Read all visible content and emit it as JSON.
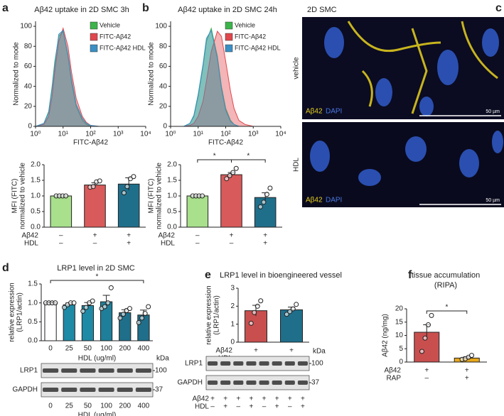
{
  "chart_data": [
    {
      "type": "histogram",
      "panel": "a",
      "title": "Aβ42 uptake in 2D SMC 3h",
      "ylabel": "Normalized to mode",
      "xlabel": "FITC-Aβ42",
      "xlog": true,
      "legend": "upper right",
      "x": [
        1,
        2,
        3,
        4,
        5,
        7,
        10,
        15,
        20,
        30,
        50,
        70,
        100,
        200
      ],
      "xlim": [
        1,
        10000
      ],
      "xticks": [
        {
          "value": 1,
          "label": "10⁰"
        },
        {
          "value": 10,
          "label": "10¹"
        },
        {
          "value": 100,
          "label": "10²"
        },
        {
          "value": 1000,
          "label": "10³"
        },
        {
          "value": 10000,
          "label": "10⁴"
        }
      ],
      "ylim": [
        0,
        105
      ],
      "yticks": [
        0,
        20,
        40,
        60,
        80,
        100
      ],
      "series": [
        {
          "name": "Vehicle",
          "color": "#3cb44b",
          "values": [
            0,
            3,
            15,
            40,
            65,
            90,
            95,
            70,
            45,
            20,
            6,
            2,
            0,
            0
          ]
        },
        {
          "name": "FITC-Aβ42",
          "color": "#e0474c",
          "values": [
            0,
            2,
            10,
            30,
            55,
            85,
            98,
            80,
            55,
            28,
            10,
            4,
            1,
            0
          ]
        },
        {
          "name": "FITC-Aβ42 HDL",
          "color": "#3a8fc4",
          "values": [
            0,
            3,
            14,
            38,
            62,
            92,
            96,
            72,
            48,
            22,
            8,
            3,
            1,
            0
          ]
        }
      ]
    },
    {
      "type": "bar",
      "ylabel": [
        "MFI (FITC)",
        "normalized to vehicle"
      ],
      "ylim": [
        0,
        2
      ],
      "yticks": [
        {
          "value": 0,
          "label": "0.0"
        },
        {
          "value": 0.5,
          "label": "0.5"
        },
        {
          "value": 1,
          "label": "1.0"
        },
        {
          "value": 1.5,
          "label": "1.5"
        },
        {
          "value": 2,
          "label": "2.0"
        }
      ],
      "values": [
        1,
        1.35,
        1.38
      ],
      "errors": [
        0,
        0.07,
        0.2
      ],
      "colors": [
        "#a8e08c",
        "#d95a5a",
        "#1f6f8b"
      ],
      "points": [
        [
          1,
          1,
          1,
          1
        ],
        [
          1.28,
          1.3,
          1.45,
          1.48
        ],
        [
          1.1,
          1.3,
          1.55,
          1.62
        ]
      ],
      "conditions": [
        {
          "name": "Aβ42",
          "values": [
            "–",
            "+",
            "+"
          ]
        },
        {
          "name": "HDL",
          "values": [
            "–",
            "–",
            "+"
          ]
        }
      ]
    },
    {
      "type": "histogram",
      "panel": "b",
      "title": "Aβ42 uptake in 2D SMC  24h",
      "ylabel": "Normalized to mode",
      "xlabel": "FITC-Aβ42",
      "xlog": true,
      "legend": "upper right",
      "x": [
        3,
        5,
        7,
        10,
        15,
        20,
        30,
        50,
        70,
        100,
        150,
        200,
        300,
        500,
        1000
      ],
      "xlim": [
        1,
        10000
      ],
      "xticks": [
        {
          "value": 1,
          "label": "10⁰"
        },
        {
          "value": 10,
          "label": "10¹"
        },
        {
          "value": 100,
          "label": "10²"
        },
        {
          "value": 1000,
          "label": "10³"
        },
        {
          "value": 10000,
          "label": "10⁴"
        }
      ],
      "ylim": [
        0,
        105
      ],
      "yticks": [
        0,
        20,
        40,
        60,
        80,
        100
      ],
      "series": [
        {
          "name": "Vehicle",
          "color": "#3cb44b",
          "values": [
            0,
            3,
            10,
            30,
            60,
            85,
            98,
            70,
            40,
            18,
            6,
            2,
            0,
            0,
            0
          ]
        },
        {
          "name": "FITC-Aβ42",
          "color": "#e0474c",
          "values": [
            0,
            1,
            3,
            10,
            25,
            45,
            75,
            95,
            90,
            65,
            35,
            18,
            6,
            2,
            0
          ]
        },
        {
          "name": "FITC-Aβ42 HDL",
          "color": "#3a8fc4",
          "values": [
            0,
            3,
            11,
            32,
            62,
            88,
            96,
            68,
            38,
            16,
            5,
            2,
            0,
            0,
            0
          ]
        }
      ]
    },
    {
      "type": "bar",
      "ylabel": [
        "MFI (FITC)",
        "normalized to vehicle"
      ],
      "ylim": [
        0,
        2
      ],
      "yticks": [
        {
          "value": 0,
          "label": "0.0"
        },
        {
          "value": 0.5,
          "label": "0.5"
        },
        {
          "value": 1,
          "label": "1.0"
        },
        {
          "value": 1.5,
          "label": "1.5"
        },
        {
          "value": 2,
          "label": "2.0"
        }
      ],
      "values": [
        1,
        1.68,
        0.95
      ],
      "errors": [
        0,
        0.07,
        0.15
      ],
      "colors": [
        "#a8e08c",
        "#d95a5a",
        "#1f6f8b"
      ],
      "points": [
        [
          1,
          1,
          1,
          1
        ],
        [
          1.55,
          1.65,
          1.75,
          1.88
        ],
        [
          0.65,
          0.8,
          1.05,
          1.25
        ]
      ],
      "conditions": [
        {
          "name": "Aβ42",
          "values": [
            "–",
            "+",
            "+"
          ]
        },
        {
          "name": "HDL",
          "values": [
            "–",
            "–",
            "+"
          ]
        }
      ],
      "significance": [
        "*",
        "*"
      ]
    },
    {
      "type": "bar",
      "panel": "d",
      "title": [
        "LRP1 level in 2D SMC"
      ],
      "ylabel": [
        "relative expression",
        "(LRP1/actin)"
      ],
      "xlabel": "HDL (ug/ml)",
      "ylim": [
        0,
        1.5
      ],
      "yticks": [
        {
          "value": 0,
          "label": "0.0"
        },
        {
          "value": 0.5,
          "label": "0.5"
        },
        {
          "value": 1,
          "label": "1.0"
        },
        {
          "value": 1.5,
          "label": "1.5"
        }
      ],
      "categories": [
        "0",
        "25",
        "50",
        "100",
        "200",
        "400"
      ],
      "values": [
        1,
        0.95,
        0.93,
        1.03,
        0.74,
        0.68
      ],
      "errors": [
        0.02,
        0.05,
        0.08,
        0.17,
        0.08,
        0.13
      ],
      "colors": [
        "#ffffff",
        "#1f8aa6",
        "#1f8aa6",
        "#1f7f9a",
        "#1f6f8b",
        "#1f6f8b"
      ],
      "points": [
        [
          1,
          1,
          1,
          1
        ],
        [
          0.88,
          0.95,
          1,
          1
        ],
        [
          0.78,
          0.88,
          1,
          1.05
        ],
        [
          0.85,
          0.9,
          1,
          1.4
        ],
        [
          0.6,
          0.7,
          0.8,
          0.85
        ],
        [
          0.48,
          0.6,
          0.72,
          0.9
        ]
      ],
      "significance": [
        "*"
      ],
      "blot": {
        "unit": "kDa",
        "rows": [
          "LRP1",
          "GAPDH"
        ],
        "kda": [
          100,
          37
        ],
        "lanes": [
          "0",
          "25",
          "50",
          "100",
          "200",
          "400"
        ],
        "xlabel": "HDL (µg/ml)"
      }
    },
    {
      "type": "bar",
      "panel": "e",
      "title": [
        "LRP1 level in bioengineered vessel"
      ],
      "ylabel": [
        "relative expression",
        "(LRP1/actin)"
      ],
      "ylim": [
        0,
        3
      ],
      "yticks": [
        0,
        1,
        2,
        3
      ],
      "values": [
        1.75,
        1.8
      ],
      "errors": [
        0.3,
        0.15
      ],
      "colors": [
        "#c94f4f",
        "#1f6f8b"
      ],
      "points": [
        [
          1.05,
          1.65,
          2,
          2.3
        ],
        [
          1.55,
          1.7,
          1.85,
          2.1
        ]
      ],
      "conditions": [
        {
          "name": "Aβ42",
          "values": [
            "+",
            "+"
          ]
        },
        {
          "name": "HDL",
          "values": [
            "–",
            "+"
          ]
        }
      ],
      "blot": {
        "unit": "kDa",
        "rows": [
          "LRP1",
          "GAPDH"
        ],
        "kda": [
          100,
          37
        ],
        "conditions": [
          {
            "name": "Aβ42",
            "values": [
              "+",
              "+",
              "+",
              "+",
              "+",
              "+",
              "+",
              "+"
            ]
          },
          {
            "name": "HDL",
            "values": [
              "–",
              "+",
              "–",
              "+",
              "–",
              "+",
              "–",
              "+"
            ]
          }
        ]
      }
    },
    {
      "type": "bar",
      "panel": "f",
      "title": [
        "tissue accumulation",
        "(RIPA)"
      ],
      "ylabel": [
        "Aβ42 (ng/mg)"
      ],
      "ylim": [
        0,
        20
      ],
      "yticks": [
        0,
        5,
        10,
        15,
        20
      ],
      "values": [
        11.2,
        1.5
      ],
      "errors": [
        2.8,
        0.5
      ],
      "colors": [
        "#c94f4f",
        "#e8a81a"
      ],
      "points": [
        [
          4,
          9,
          14,
          17.5
        ],
        [
          1,
          1.2,
          1.8,
          2.5
        ]
      ],
      "conditions": [
        {
          "name": "Aβ42",
          "values": [
            "+",
            "+"
          ]
        },
        {
          "name": "RAP",
          "values": [
            "–",
            "+"
          ]
        }
      ],
      "significance": [
        "*"
      ]
    }
  ],
  "image_panel": {
    "panel": "c",
    "title": "2D SMC",
    "images": [
      {
        "label": "vehicle",
        "stains": [
          "Aβ42",
          "DAPI"
        ],
        "scale": "50 µm"
      },
      {
        "label": "HDL",
        "stains": [
          "Aβ42",
          "DAPI"
        ],
        "scale": "50 µm"
      }
    ]
  }
}
